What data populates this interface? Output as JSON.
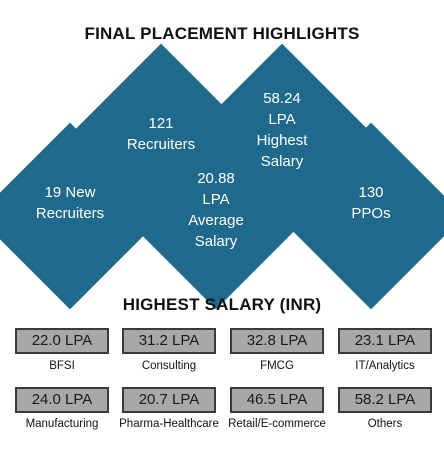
{
  "header": {
    "title": "FINAL PLACEMENT HIGHLIGHTS"
  },
  "highlights": [
    {
      "lines": [
        "19 New",
        "Recruiters"
      ]
    },
    {
      "lines": [
        "121",
        "Recruiters"
      ]
    },
    {
      "lines": [
        "20.88",
        "LPA",
        "Average",
        "Salary"
      ]
    },
    {
      "lines": [
        "58.24",
        "LPA",
        "Highest",
        "Salary"
      ]
    },
    {
      "lines": [
        "130",
        "PPOs"
      ]
    }
  ],
  "salary_section": {
    "title": "HIGHEST SALARY (INR)",
    "items": [
      {
        "value": "22.0 LPA",
        "sector": "BFSI"
      },
      {
        "value": "31.2 LPA",
        "sector": "Consulting"
      },
      {
        "value": "32.8 LPA",
        "sector": "FMCG"
      },
      {
        "value": "23.1 LPA",
        "sector": "IT/Analytics"
      },
      {
        "value": "24.0 LPA",
        "sector": "Manufacturing"
      },
      {
        "value": "20.7 LPA",
        "sector": "Pharma-Healthcare"
      },
      {
        "value": "46.5 LPA",
        "sector": "Retail/E-commerce"
      },
      {
        "value": "58.2 LPA",
        "sector": "Others"
      }
    ]
  },
  "colors": {
    "diamond": "#1f6a8c",
    "box_fill": "#a8a8a8",
    "box_border": "#3a3a3a"
  }
}
